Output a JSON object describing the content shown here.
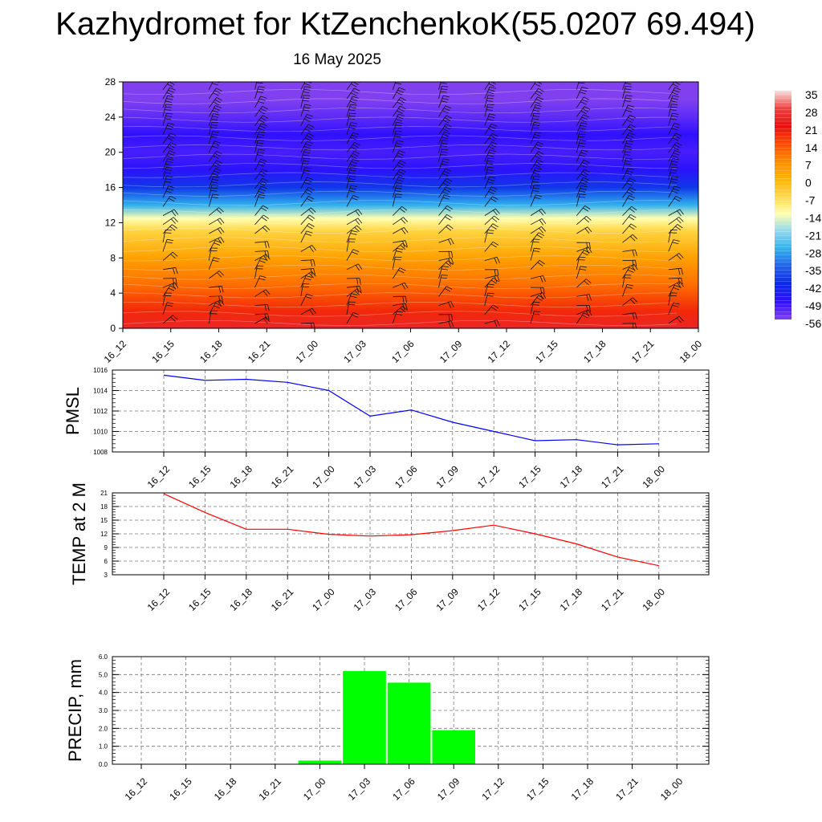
{
  "title": "Kazhydromet for KtZenchenkoK(55.0207 69.494)",
  "subtitle": "16 May 2025",
  "time_labels": [
    "16_12",
    "16_15",
    "16_18",
    "16_21",
    "17_00",
    "17_03",
    "17_06",
    "17_09",
    "17_12",
    "17_15",
    "17_18",
    "17_21",
    "18_00"
  ],
  "chart_data": [
    {
      "type": "heatmap",
      "name": "temperature-cross-section",
      "x": [
        "16_12",
        "16_15",
        "16_18",
        "16_21",
        "17_00",
        "17_03",
        "17_06",
        "17_09",
        "17_12",
        "17_15",
        "17_18",
        "17_21",
        "18_00"
      ],
      "ylim": [
        0,
        28
      ],
      "yticks": [
        "0",
        "4",
        "8",
        "12",
        "16",
        "20",
        "24",
        "28"
      ],
      "colorbar": {
        "labels": [
          "35",
          "28",
          "21",
          "14",
          "7",
          "0",
          "-7",
          "-14",
          "-21",
          "-28",
          "-35",
          "-42",
          "-49",
          "-56"
        ],
        "colors": [
          "#f8e0e0",
          "#f04040",
          "#e81010",
          "#ff4a00",
          "#ff8a00",
          "#ffb300",
          "#ffd84a",
          "#ffffb0",
          "#8ed8f0",
          "#30b0ee",
          "#2060e8",
          "#0a28e8",
          "#3010ff",
          "#8040f0"
        ]
      },
      "levels": [
        {
          "y": 0,
          "value": 24
        },
        {
          "y": 2,
          "value": 18
        },
        {
          "y": 5,
          "value": 10
        },
        {
          "y": 8,
          "value": 3
        },
        {
          "y": 11,
          "value": -6
        },
        {
          "y": 12.5,
          "value": -14
        },
        {
          "y": 14,
          "value": -28
        },
        {
          "y": 16,
          "value": -40
        },
        {
          "y": 18,
          "value": -48
        },
        {
          "y": 20,
          "value": -51
        },
        {
          "y": 22,
          "value": -49
        },
        {
          "y": 24,
          "value": -53
        },
        {
          "y": 26,
          "value": -56
        },
        {
          "y": 28,
          "value": -57
        }
      ],
      "wind_barbs": "shown"
    },
    {
      "type": "line",
      "name": "pmsl",
      "ylabel": "PMSL",
      "x": [
        "16_12",
        "16_15",
        "16_18",
        "16_21",
        "17_00",
        "17_03",
        "17_06",
        "17_09",
        "17_12",
        "17_15",
        "17_18",
        "17_21",
        "18_00"
      ],
      "values": [
        1015.5,
        1015.0,
        1015.1,
        1014.8,
        1014.0,
        1011.5,
        1012.1,
        1010.9,
        1010.0,
        1009.1,
        1009.2,
        1008.7,
        1008.8
      ],
      "ylim": [
        1008,
        1016
      ],
      "yticks": [
        "1008",
        "1010",
        "1012",
        "1014",
        "1016"
      ],
      "color": "#0000ff",
      "grid": true
    },
    {
      "type": "line",
      "name": "temp-2m",
      "ylabel": "TEMP at 2 M",
      "x": [
        "16_12",
        "16_15",
        "16_18",
        "16_21",
        "17_00",
        "17_03",
        "17_06",
        "17_09",
        "17_12",
        "17_15",
        "17_18",
        "17_21",
        "18_00"
      ],
      "values": [
        20.8,
        16.7,
        13.0,
        13.0,
        11.9,
        11.5,
        11.8,
        12.7,
        13.9,
        12.0,
        9.8,
        6.9,
        5.0
      ],
      "ylim": [
        3,
        21
      ],
      "yticks": [
        "3",
        "6",
        "9",
        "12",
        "15",
        "18",
        "21"
      ],
      "color": "#ff0000",
      "grid": true
    },
    {
      "type": "bar",
      "name": "precip",
      "ylabel": "PRECIP, mm",
      "categories": [
        "16_12",
        "16_15",
        "16_18",
        "16_21",
        "17_00",
        "17_03",
        "17_06",
        "17_09",
        "17_12",
        "17_15",
        "17_18",
        "17_21",
        "18_00"
      ],
      "values": [
        0,
        0,
        0,
        0,
        0.2,
        5.2,
        4.55,
        1.9,
        0,
        0,
        0,
        0,
        0
      ],
      "ylim": [
        0,
        6
      ],
      "yticks": [
        "0.0",
        "1.0",
        "2.0",
        "3.0",
        "4.0",
        "5.0",
        "6.0"
      ],
      "color": "#00ff00",
      "grid": true
    }
  ]
}
